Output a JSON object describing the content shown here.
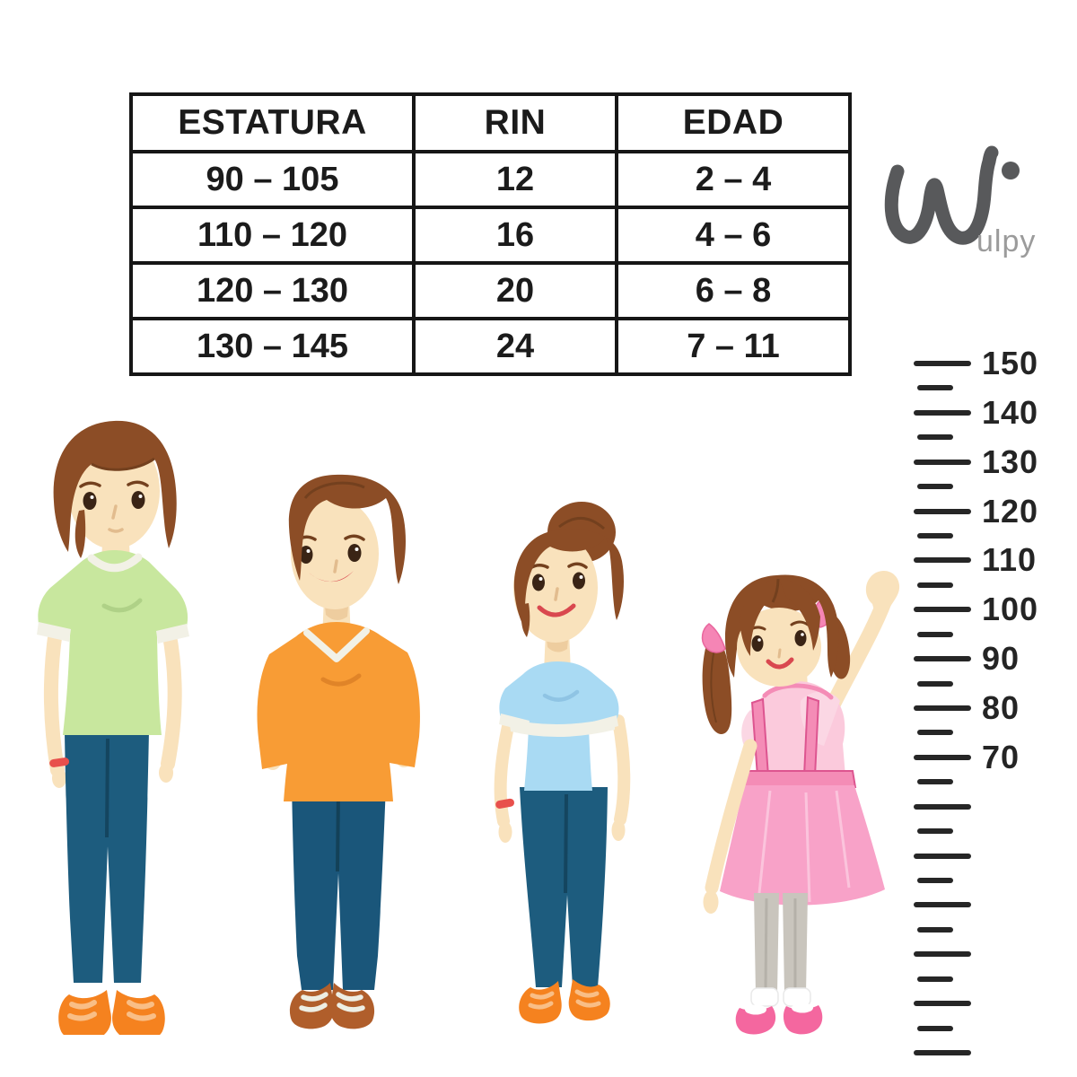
{
  "page": {
    "background": "#FFFFFF",
    "description": "Kids bike size guide infographic with size table, Wulpy logo, four children of increasing height and a height ruler"
  },
  "brand": {
    "name": "Wulpy",
    "logo_suffix": "ulpy"
  },
  "size_table": {
    "headers": [
      "ESTATURA",
      "RIN",
      "EDAD"
    ],
    "rows": [
      [
        "90 – 105",
        "12",
        "2 – 4"
      ],
      [
        "110 – 120",
        "16",
        "4 – 6"
      ],
      [
        "120 – 130",
        "20",
        "6 – 8"
      ],
      [
        "130 – 145",
        "24",
        "7 – 11"
      ]
    ]
  },
  "ruler": {
    "start_value": 150,
    "end_value": 10,
    "minor_step": 5,
    "major_step": 10,
    "unit_labels": [
      "150",
      "140",
      "130",
      "120",
      "110",
      "100",
      "90",
      "80",
      "70"
    ]
  },
  "chart_data": {
    "type": "table",
    "columns": [
      "ESTATURA",
      "RIN",
      "EDAD"
    ],
    "rows": [
      [
        "90 – 105",
        "12",
        "2 – 4"
      ],
      [
        "110 – 120",
        "16",
        "4 – 6"
      ],
      [
        "120 – 130",
        "20",
        "6 – 8"
      ],
      [
        "130 – 145",
        "24",
        "7 – 11"
      ]
    ],
    "ruler_labels": [
      150,
      140,
      130,
      120,
      110,
      100,
      90,
      80,
      70
    ]
  },
  "illustration": {
    "figures": [
      {
        "name": "teen-green-shirt",
        "pose": "standing, arms at sides",
        "accessory": "red bracelet"
      },
      {
        "name": "boy-orange-shirt",
        "pose": "standing, hands behind back"
      },
      {
        "name": "girl-blue-shirt-bun",
        "pose": "standing, arms at sides",
        "accessory": "red bracelet"
      },
      {
        "name": "girl-pink-dress",
        "pose": "standing, right arm raised waving"
      }
    ]
  },
  "palette": {
    "skin": "#F9E2BC",
    "skin_shadow": "#EECD9F",
    "hair": "#8C4D26",
    "hair_dark": "#73401E",
    "shirt_green": "#C8E79E",
    "jeans": "#1D5C7E",
    "shirt_orange": "#F89C35",
    "shoes_orange": "#F5821F",
    "shoes_brown": "#B05E2B",
    "shirt_blue": "#A9DAF3",
    "pink_top": "#FBCADC",
    "pink_skirt": "#F8A2C8",
    "pink_strap": "#F48CB6",
    "pink_strap_edge": "#DD5590",
    "pink_bow": "#F585B5",
    "pink_shoes": "#F4679F",
    "gray_leggings": "#C9C5BD",
    "red_accent": "#E8504C",
    "lip_red": "#D9484F",
    "trim_white": "#F2F1E6",
    "ink": "#1B1B1B",
    "logo_dark": "#58595B",
    "logo_light": "#9B9B9B",
    "eye_brown": "#3A2415"
  }
}
